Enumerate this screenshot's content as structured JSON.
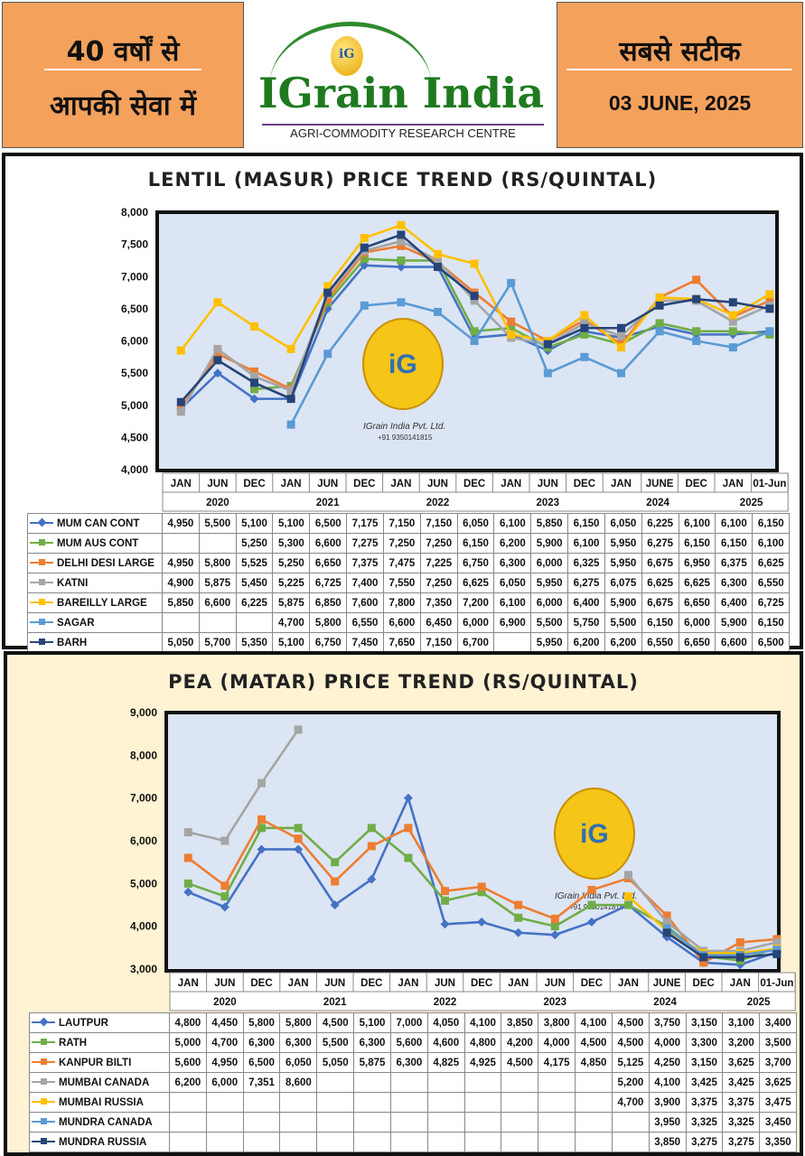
{
  "header": {
    "left_top": "40 वर्षों से",
    "left_bottom": "आपकी सेवा में",
    "logo_title": "IGrain India",
    "logo_subtitle": "AGRI-COMMODITY RESEARCH CENTRE",
    "logo_badge": "iG",
    "right_top": "सबसे सटीक",
    "date": "03 JUNE, 2025"
  },
  "watermark": {
    "company": "IGrain India Pvt. Ltd.",
    "phone": "+91 9350141815",
    "badge": "iG"
  },
  "chart_data": [
    {
      "type": "line",
      "title": "LENTIL (MASUR) PRICE TREND (RS/QUINTAL)",
      "ylim": [
        4000,
        8000
      ],
      "yticks": [
        "4,000",
        "4,500",
        "5,000",
        "5,500",
        "6,000",
        "6,500",
        "7,000",
        "7,500",
        "8,000"
      ],
      "ytick_values": [
        4000,
        4500,
        5000,
        5500,
        6000,
        6500,
        7000,
        7500,
        8000
      ],
      "categories": [
        "JAN",
        "JUN",
        "DEC",
        "JAN",
        "JUN",
        "DEC",
        "JAN",
        "JUN",
        "DEC",
        "JAN",
        "JUN",
        "DEC",
        "JAN",
        "JUNE",
        "DEC",
        "JAN",
        "01-Jun"
      ],
      "years": [
        "2020",
        "2021",
        "2022",
        "2023",
        "2024",
        "2025"
      ],
      "series": [
        {
          "name": "MUM CAN CONT",
          "color": "#4472c4",
          "marker": "diamond",
          "values": [
            4950,
            5500,
            5100,
            5100,
            6500,
            7175,
            7150,
            7150,
            6050,
            6100,
            5850,
            6150,
            6050,
            6225,
            6100,
            6100,
            6150
          ],
          "labels": [
            "4,950",
            "5,500",
            "5,100",
            "5,100",
            "6,500",
            "7,175",
            "7,150",
            "7,150",
            "6,050",
            "6,100",
            "5,850",
            "6,150",
            "6,050",
            "6,225",
            "6,100",
            "6,100",
            "6,150"
          ]
        },
        {
          "name": "MUM AUS CONT",
          "color": "#70ad47",
          "marker": "square",
          "values": [
            null,
            null,
            5250,
            5300,
            6600,
            7275,
            7250,
            7250,
            6150,
            6200,
            5900,
            6100,
            5950,
            6275,
            6150,
            6150,
            6100
          ],
          "labels": [
            "",
            "",
            "5,250",
            "5,300",
            "6,600",
            "7,275",
            "7,250",
            "7,250",
            "6,150",
            "6,200",
            "5,900",
            "6,100",
            "5,950",
            "6,275",
            "6,150",
            "6,150",
            "6,100"
          ]
        },
        {
          "name": "DELHI DESI LARGE",
          "color": "#ed7d31",
          "marker": "square",
          "values": [
            4950,
            5800,
            5525,
            5250,
            6650,
            7375,
            7475,
            7225,
            6750,
            6300,
            6000,
            6325,
            5950,
            6675,
            6950,
            6375,
            6625
          ],
          "labels": [
            "4,950",
            "5,800",
            "5,525",
            "5,250",
            "6,650",
            "7,375",
            "7,475",
            "7,225",
            "6,750",
            "6,300",
            "6,000",
            "6,325",
            "5,950",
            "6,675",
            "6,950",
            "6,375",
            "6,625"
          ]
        },
        {
          "name": "KATNI",
          "color": "#a5a5a5",
          "marker": "square",
          "values": [
            4900,
            5875,
            5450,
            5225,
            6725,
            7400,
            7550,
            7250,
            6625,
            6050,
            5950,
            6275,
            6075,
            6625,
            6625,
            6300,
            6550
          ],
          "labels": [
            "4,900",
            "5,875",
            "5,450",
            "5,225",
            "6,725",
            "7,400",
            "7,550",
            "7,250",
            "6,625",
            "6,050",
            "5,950",
            "6,275",
            "6,075",
            "6,625",
            "6,625",
            "6,300",
            "6,550"
          ]
        },
        {
          "name": "BAREILLY LARGE",
          "color": "#ffc000",
          "marker": "square",
          "values": [
            5850,
            6600,
            6225,
            5875,
            6850,
            7600,
            7800,
            7350,
            7200,
            6100,
            6000,
            6400,
            5900,
            6675,
            6650,
            6400,
            6725
          ],
          "labels": [
            "5,850",
            "6,600",
            "6,225",
            "5,875",
            "6,850",
            "7,600",
            "7,800",
            "7,350",
            "7,200",
            "6,100",
            "6,000",
            "6,400",
            "5,900",
            "6,675",
            "6,650",
            "6,400",
            "6,725"
          ]
        },
        {
          "name": "SAGAR",
          "color": "#5b9bd5",
          "marker": "square",
          "values": [
            null,
            null,
            null,
            4700,
            5800,
            6550,
            6600,
            6450,
            6000,
            6900,
            5500,
            5750,
            5500,
            6150,
            6000,
            5900,
            6150
          ],
          "labels": [
            "",
            "",
            "",
            "4,700",
            "5,800",
            "6,550",
            "6,600",
            "6,450",
            "6,000",
            "6,900",
            "5,500",
            "5,750",
            "5,500",
            "6,150",
            "6,000",
            "5,900",
            "6,150"
          ]
        },
        {
          "name": "BARH",
          "color": "#264478",
          "marker": "square",
          "values": [
            5050,
            5700,
            5350,
            5100,
            6750,
            7450,
            7650,
            7150,
            6700,
            null,
            5950,
            6200,
            6200,
            6550,
            6650,
            6600,
            6500
          ],
          "labels": [
            "5,050",
            "5,700",
            "5,350",
            "5,100",
            "6,750",
            "7,450",
            "7,650",
            "7,150",
            "6,700",
            "",
            "5,950",
            "6,200",
            "6,200",
            "6,550",
            "6,650",
            "6,600",
            "6,500"
          ]
        }
      ]
    },
    {
      "type": "line",
      "title": "PEA (MATAR) PRICE TREND (RS/QUINTAL)",
      "ylim": [
        3000,
        9000
      ],
      "yticks": [
        "3,000",
        "4,000",
        "5,000",
        "6,000",
        "7,000",
        "8,000",
        "9,000"
      ],
      "ytick_values": [
        3000,
        4000,
        5000,
        6000,
        7000,
        8000,
        9000
      ],
      "categories": [
        "JAN",
        "JUN",
        "DEC",
        "JAN",
        "JUN",
        "DEC",
        "JAN",
        "JUN",
        "DEC",
        "JAN",
        "JUN",
        "DEC",
        "JAN",
        "JUNE",
        "DEC",
        "JAN",
        "01-Jun"
      ],
      "years": [
        "2020",
        "2021",
        "2022",
        "2023",
        "2024",
        "2025"
      ],
      "series": [
        {
          "name": "LAUTPUR",
          "color": "#4472c4",
          "marker": "diamond",
          "values": [
            4800,
            4450,
            5800,
            5800,
            4500,
            5100,
            7000,
            4050,
            4100,
            3850,
            3800,
            4100,
            4500,
            3750,
            3150,
            3100,
            3400
          ],
          "labels": [
            "4,800",
            "4,450",
            "5,800",
            "5,800",
            "4,500",
            "5,100",
            "7,000",
            "4,050",
            "4,100",
            "3,850",
            "3,800",
            "4,100",
            "4,500",
            "3,750",
            "3,150",
            "3,100",
            "3,400"
          ]
        },
        {
          "name": "RATH",
          "color": "#70ad47",
          "marker": "square",
          "values": [
            5000,
            4700,
            6300,
            6300,
            5500,
            6300,
            5600,
            4600,
            4800,
            4200,
            4000,
            4500,
            4500,
            4000,
            3300,
            3200,
            3500
          ],
          "labels": [
            "5,000",
            "4,700",
            "6,300",
            "6,300",
            "5,500",
            "6,300",
            "5,600",
            "4,600",
            "4,800",
            "4,200",
            "4,000",
            "4,500",
            "4,500",
            "4,000",
            "3,300",
            "3,200",
            "3,500"
          ]
        },
        {
          "name": "KANPUR BILTI",
          "color": "#ed7d31",
          "marker": "square",
          "values": [
            5600,
            4950,
            6500,
            6050,
            5050,
            5875,
            6300,
            4825,
            4925,
            4500,
            4175,
            4850,
            5125,
            4250,
            3150,
            3625,
            3700
          ],
          "labels": [
            "5,600",
            "4,950",
            "6,500",
            "6,050",
            "5,050",
            "5,875",
            "6,300",
            "4,825",
            "4,925",
            "4,500",
            "4,175",
            "4,850",
            "5,125",
            "4,250",
            "3,150",
            "3,625",
            "3,700"
          ]
        },
        {
          "name": "MUMBAI CANADA",
          "color": "#a5a5a5",
          "marker": "square",
          "values": [
            6200,
            6000,
            7351,
            8600,
            null,
            null,
            null,
            null,
            null,
            null,
            null,
            null,
            5200,
            4100,
            3425,
            3425,
            3625
          ],
          "labels": [
            "6,200",
            "6,000",
            "7,351",
            "8,600",
            "",
            "",
            "",
            "",
            "",
            "",
            "",
            "",
            "5,200",
            "4,100",
            "3,425",
            "3,425",
            "3,625"
          ]
        },
        {
          "name": "MUMBAI RUSSIA",
          "color": "#ffc000",
          "marker": "square",
          "values": [
            null,
            null,
            null,
            null,
            null,
            null,
            null,
            null,
            null,
            null,
            null,
            null,
            4700,
            3900,
            3375,
            3375,
            3475
          ],
          "labels": [
            "",
            "",
            "",
            "",
            "",
            "",
            "",
            "",
            "",
            "",
            "",
            "",
            "4,700",
            "3,900",
            "3,375",
            "3,375",
            "3,475"
          ]
        },
        {
          "name": "MUNDRA CANADA",
          "color": "#5b9bd5",
          "marker": "square",
          "values": [
            null,
            null,
            null,
            null,
            null,
            null,
            null,
            null,
            null,
            null,
            null,
            null,
            null,
            3950,
            3325,
            3325,
            3450
          ],
          "labels": [
            "",
            "",
            "",
            "",
            "",
            "",
            "",
            "",
            "",
            "",
            "",
            "",
            "",
            "3,950",
            "3,325",
            "3,325",
            "3,450"
          ]
        },
        {
          "name": "MUNDRA RUSSIA",
          "color": "#264478",
          "marker": "square",
          "values": [
            null,
            null,
            null,
            null,
            null,
            null,
            null,
            null,
            null,
            null,
            null,
            null,
            null,
            3850,
            3275,
            3275,
            3350
          ],
          "labels": [
            "",
            "",
            "",
            "",
            "",
            "",
            "",
            "",
            "",
            "",
            "",
            "",
            "",
            "3,850",
            "3,275",
            "3,275",
            "3,350"
          ]
        }
      ]
    }
  ]
}
